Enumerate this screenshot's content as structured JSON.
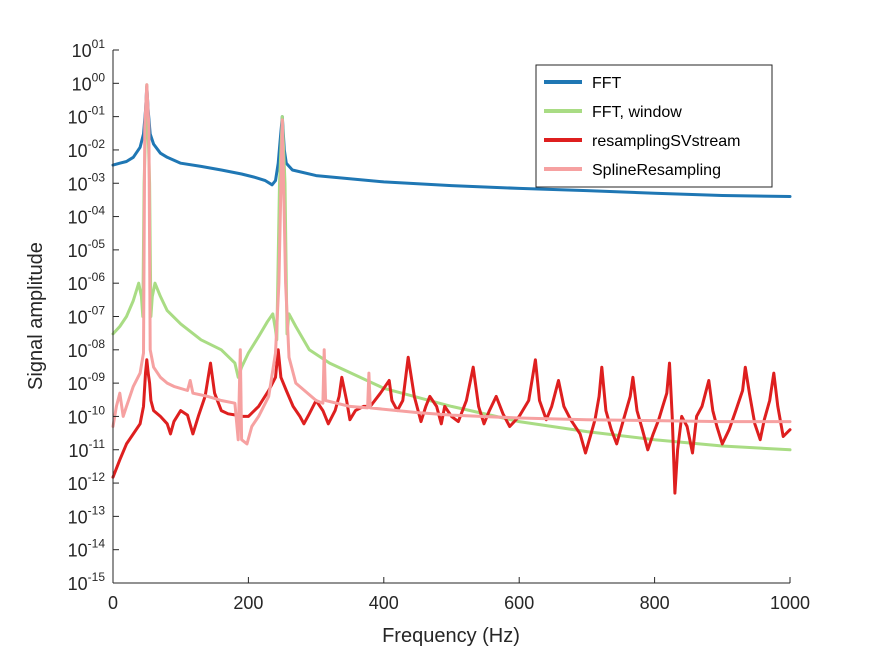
{
  "chart_data": {
    "type": "line",
    "title": "",
    "xlabel": "Frequency (Hz)",
    "ylabel": "Signal amplitude",
    "xlim": [
      0,
      1000
    ],
    "ylog": true,
    "ylim_exp": [
      -15,
      1
    ],
    "x_ticks": [
      "0",
      "200",
      "400",
      "600",
      "800",
      "1000"
    ],
    "y_ticks": [
      {
        "base": "10",
        "exp": "-15"
      },
      {
        "base": "10",
        "exp": "-14"
      },
      {
        "base": "10",
        "exp": "-13"
      },
      {
        "base": "10",
        "exp": "-12"
      },
      {
        "base": "10",
        "exp": "-11"
      },
      {
        "base": "10",
        "exp": "-10"
      },
      {
        "base": "10",
        "exp": "-09"
      },
      {
        "base": "10",
        "exp": "-08"
      },
      {
        "base": "10",
        "exp": "-07"
      },
      {
        "base": "10",
        "exp": "-06"
      },
      {
        "base": "10",
        "exp": "-05"
      },
      {
        "base": "10",
        "exp": "-04"
      },
      {
        "base": "10",
        "exp": "-03"
      },
      {
        "base": "10",
        "exp": "-02"
      },
      {
        "base": "10",
        "exp": "-01"
      },
      {
        "base": "10",
        "exp": "00"
      },
      {
        "base": "10",
        "exp": "01"
      }
    ],
    "grid": false,
    "legend_position": "top-right",
    "series": [
      {
        "name": "FFT",
        "color": "#1f77b4",
        "points": [
          [
            0,
            0.0035
          ],
          [
            10,
            0.004
          ],
          [
            20,
            0.0045
          ],
          [
            30,
            0.006
          ],
          [
            40,
            0.012
          ],
          [
            45,
            0.03
          ],
          [
            48,
            0.15
          ],
          [
            50,
            0.8
          ],
          [
            52,
            0.15
          ],
          [
            55,
            0.03
          ],
          [
            60,
            0.015
          ],
          [
            70,
            0.008
          ],
          [
            80,
            0.006
          ],
          [
            100,
            0.004
          ],
          [
            130,
            0.0032
          ],
          [
            160,
            0.0025
          ],
          [
            190,
            0.0019
          ],
          [
            210,
            0.0015
          ],
          [
            225,
            0.0012
          ],
          [
            235,
            0.0009
          ],
          [
            240,
            0.0012
          ],
          [
            244,
            0.004
          ],
          [
            247,
            0.02
          ],
          [
            250,
            0.1
          ],
          [
            253,
            0.01
          ],
          [
            256,
            0.004
          ],
          [
            265,
            0.0025
          ],
          [
            300,
            0.0017
          ],
          [
            400,
            0.0011
          ],
          [
            500,
            0.00085
          ],
          [
            600,
            0.0007
          ],
          [
            700,
            0.0006
          ],
          [
            800,
            0.0005
          ],
          [
            900,
            0.00043
          ],
          [
            1000,
            0.0004
          ]
        ]
      },
      {
        "name": "FFT, window",
        "color": "#a9dc84",
        "points": [
          [
            0,
            3e-08
          ],
          [
            10,
            5e-08
          ],
          [
            20,
            1e-07
          ],
          [
            30,
            3e-07
          ],
          [
            38,
            1e-06
          ],
          [
            42,
            4e-07
          ],
          [
            44,
            1e-07
          ],
          [
            46,
            0.001
          ],
          [
            50,
            0.9
          ],
          [
            54,
            0.001
          ],
          [
            56,
            1e-07
          ],
          [
            58,
            4e-07
          ],
          [
            62,
            1e-06
          ],
          [
            70,
            4e-07
          ],
          [
            80,
            1.5e-07
          ],
          [
            100,
            6e-08
          ],
          [
            130,
            2e-08
          ],
          [
            160,
            1e-08
          ],
          [
            180,
            4e-09
          ],
          [
            185,
            1.5e-09
          ],
          [
            190,
            3e-09
          ],
          [
            200,
            8e-09
          ],
          [
            215,
            2.5e-08
          ],
          [
            228,
            7e-08
          ],
          [
            236,
            1.2e-07
          ],
          [
            240,
            4e-08
          ],
          [
            242,
            2e-08
          ],
          [
            246,
            0.001
          ],
          [
            250,
            0.1
          ],
          [
            254,
            0.001
          ],
          [
            257,
            3e-08
          ],
          [
            260,
            1.2e-07
          ],
          [
            270,
            5e-08
          ],
          [
            290,
            1e-08
          ],
          [
            320,
            4e-09
          ],
          [
            400,
            7e-10
          ],
          [
            500,
            2e-10
          ],
          [
            600,
            7e-11
          ],
          [
            700,
            3.5e-11
          ],
          [
            800,
            2e-11
          ],
          [
            900,
            1.3e-11
          ],
          [
            1000,
            1e-11
          ]
        ]
      },
      {
        "name": "resamplingSVstream",
        "color": "#de1f1f",
        "points": [
          [
            0,
            1.5e-12
          ],
          [
            10,
            5e-12
          ],
          [
            20,
            1.5e-11
          ],
          [
            30,
            3e-11
          ],
          [
            40,
            6e-11
          ],
          [
            45,
            2e-10
          ],
          [
            48,
            2e-09
          ],
          [
            50,
            5e-09
          ],
          [
            52,
            2e-09
          ],
          [
            54,
            1e-09
          ],
          [
            56,
            3e-10
          ],
          [
            60,
            1.5e-10
          ],
          [
            70,
            1e-10
          ],
          [
            80,
            6e-11
          ],
          [
            85,
            3e-11
          ],
          [
            90,
            7e-11
          ],
          [
            100,
            1.5e-10
          ],
          [
            110,
            1.1e-10
          ],
          [
            118,
            3e-11
          ],
          [
            126,
            1e-10
          ],
          [
            136,
            4e-10
          ],
          [
            144,
            4e-09
          ],
          [
            150,
            5e-10
          ],
          [
            160,
            1.5e-10
          ],
          [
            170,
            1.2e-10
          ],
          [
            182,
            1.1e-10
          ],
          [
            190,
            1e-10
          ],
          [
            200,
            1e-10
          ],
          [
            215,
            2e-10
          ],
          [
            230,
            6e-10
          ],
          [
            240,
            1.5e-09
          ],
          [
            244,
            1e-08
          ],
          [
            248,
            1.5e-09
          ],
          [
            256,
            6e-10
          ],
          [
            266,
            2e-10
          ],
          [
            276,
            1e-10
          ],
          [
            282,
            6e-11
          ],
          [
            290,
            1.2e-10
          ],
          [
            300,
            3e-10
          ],
          [
            310,
            1.5e-10
          ],
          [
            318,
            6e-11
          ],
          [
            328,
            1.5e-10
          ],
          [
            334,
            4e-10
          ],
          [
            338,
            1.5e-09
          ],
          [
            345,
            3e-10
          ],
          [
            350,
            8e-11
          ],
          [
            358,
            1.5e-10
          ],
          [
            370,
            2e-10
          ],
          [
            380,
            2e-10
          ],
          [
            395,
            5e-10
          ],
          [
            408,
            1.2e-09
          ],
          [
            412,
            3e-10
          ],
          [
            420,
            1.5e-10
          ],
          [
            428,
            3e-10
          ],
          [
            436,
            6e-09
          ],
          [
            445,
            4e-10
          ],
          [
            455,
            7e-11
          ],
          [
            462,
            2e-10
          ],
          [
            468,
            4e-10
          ],
          [
            478,
            2e-10
          ],
          [
            485,
            6e-11
          ],
          [
            490,
            2e-10
          ],
          [
            500,
            1e-10
          ],
          [
            510,
            7e-11
          ],
          [
            522,
            3e-10
          ],
          [
            532,
            3e-09
          ],
          [
            540,
            2e-10
          ],
          [
            548,
            6e-11
          ],
          [
            556,
            1.5e-10
          ],
          [
            566,
            4e-10
          ],
          [
            576,
            1.2e-10
          ],
          [
            586,
            5e-11
          ],
          [
            600,
            1e-10
          ],
          [
            614,
            3e-10
          ],
          [
            624,
            5e-09
          ],
          [
            630,
            3e-10
          ],
          [
            640,
            8e-11
          ],
          [
            648,
            2e-10
          ],
          [
            658,
            1.2e-09
          ],
          [
            666,
            2e-10
          ],
          [
            676,
            8e-11
          ],
          [
            690,
            3e-11
          ],
          [
            698,
            8e-12
          ],
          [
            706,
            3e-11
          ],
          [
            712,
            8e-11
          ],
          [
            718,
            4e-10
          ],
          [
            722,
            3e-09
          ],
          [
            728,
            1.5e-10
          ],
          [
            736,
            4e-11
          ],
          [
            744,
            1.5e-11
          ],
          [
            754,
            8e-11
          ],
          [
            764,
            4e-10
          ],
          [
            768,
            1.5e-09
          ],
          [
            774,
            1.5e-10
          ],
          [
            782,
            4e-11
          ],
          [
            790,
            1e-11
          ],
          [
            798,
            3e-11
          ],
          [
            806,
            8e-11
          ],
          [
            812,
            2e-10
          ],
          [
            818,
            5e-10
          ],
          [
            822,
            4e-09
          ],
          [
            826,
            1e-10
          ],
          [
            830,
            5e-13
          ],
          [
            834,
            1e-11
          ],
          [
            840,
            1e-10
          ],
          [
            848,
            5e-11
          ],
          [
            856,
            8e-12
          ],
          [
            862,
            1e-10
          ],
          [
            870,
            2e-10
          ],
          [
            880,
            1.2e-09
          ],
          [
            886,
            1.5e-10
          ],
          [
            892,
            5e-11
          ],
          [
            900,
            1.5e-11
          ],
          [
            910,
            4e-11
          ],
          [
            920,
            1.5e-10
          ],
          [
            930,
            6e-10
          ],
          [
            934,
            3e-09
          ],
          [
            940,
            5e-10
          ],
          [
            948,
            6e-11
          ],
          [
            956,
            2e-11
          ],
          [
            962,
            8e-11
          ],
          [
            970,
            3e-10
          ],
          [
            976,
            2e-09
          ],
          [
            982,
            2e-10
          ],
          [
            990,
            2.5e-11
          ],
          [
            1000,
            4e-11
          ]
        ]
      },
      {
        "name": "SplineResampling",
        "color": "#f6a1a1",
        "points": [
          [
            0,
            5e-11
          ],
          [
            5,
            2e-10
          ],
          [
            10,
            5e-10
          ],
          [
            15,
            1e-10
          ],
          [
            20,
            2e-10
          ],
          [
            30,
            8e-10
          ],
          [
            40,
            2e-09
          ],
          [
            45,
            8e-09
          ],
          [
            47,
            0.05
          ],
          [
            50,
            0.9
          ],
          [
            53,
            0.05
          ],
          [
            55,
            1e-08
          ],
          [
            60,
            3e-09
          ],
          [
            70,
            1.5e-09
          ],
          [
            80,
            1e-09
          ],
          [
            90,
            8e-10
          ],
          [
            110,
            6e-10
          ],
          [
            114,
            1.2e-09
          ],
          [
            118,
            5e-10
          ],
          [
            140,
            4e-10
          ],
          [
            160,
            3e-10
          ],
          [
            180,
            2.5e-10
          ],
          [
            185,
            2e-11
          ],
          [
            188,
            1e-08
          ],
          [
            190,
            2e-11
          ],
          [
            198,
            1.5e-11
          ],
          [
            205,
            5e-11
          ],
          [
            215,
            1e-10
          ],
          [
            230,
            4e-10
          ],
          [
            240,
            8e-09
          ],
          [
            245,
            1e-06
          ],
          [
            250,
            0.08
          ],
          [
            255,
            1e-06
          ],
          [
            260,
            6e-09
          ],
          [
            270,
            1e-09
          ],
          [
            300,
            3e-10
          ],
          [
            310,
            2.5e-10
          ],
          [
            312,
            1e-08
          ],
          [
            314,
            3e-10
          ],
          [
            350,
            2e-10
          ],
          [
            376,
            1.8e-10
          ],
          [
            378,
            2e-09
          ],
          [
            380,
            1.8e-10
          ],
          [
            450,
            1.3e-10
          ],
          [
            500,
            1.1e-10
          ],
          [
            600,
            9e-11
          ],
          [
            700,
            8e-11
          ],
          [
            800,
            7.5e-11
          ],
          [
            900,
            7e-11
          ],
          [
            1000,
            7e-11
          ]
        ]
      }
    ]
  }
}
